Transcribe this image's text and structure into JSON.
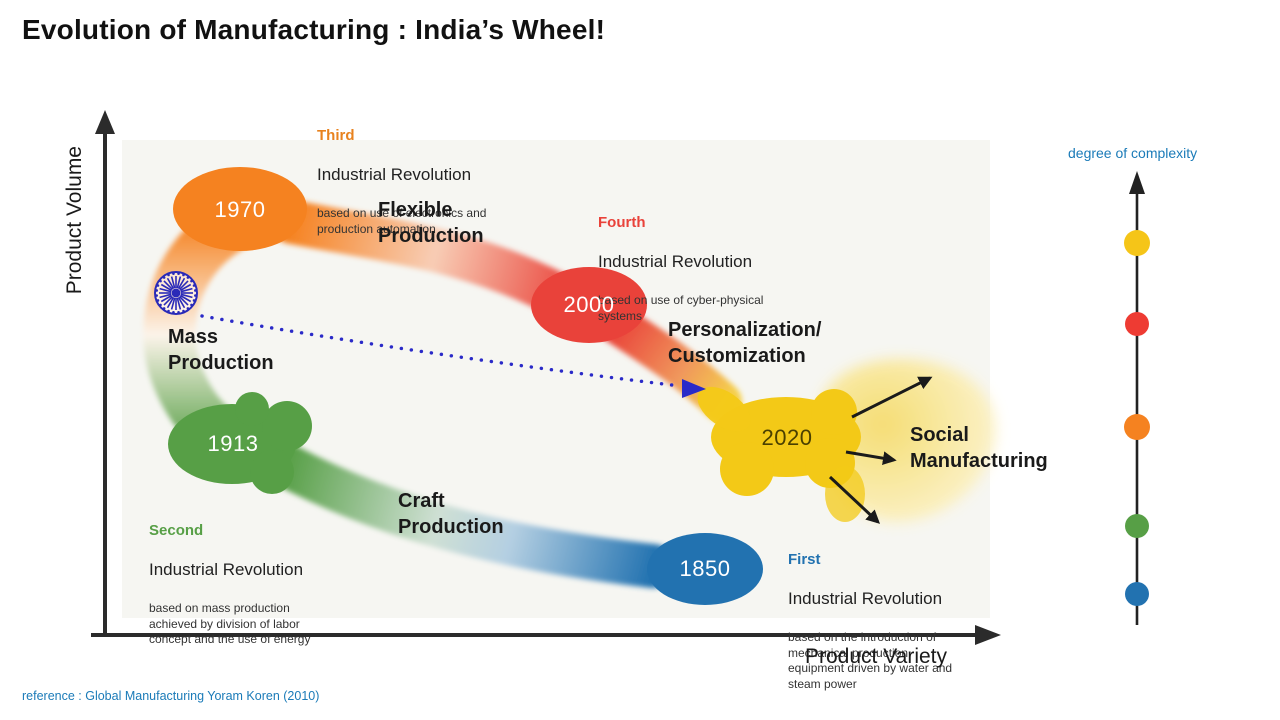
{
  "title": "Evolution of Manufacturing : India’s Wheel!",
  "axes": {
    "y_label": "Product Volume",
    "x_label": "Product Variety"
  },
  "reference": "reference : Global Manufacturing Yoram Koren (2010)",
  "complexity_scale": {
    "label": "degree of complexity",
    "label_color": "#1b7bb8",
    "dot_colors_top_to_bottom": [
      "#f5c518",
      "#ee3b33",
      "#f58220",
      "#579f46",
      "#2272b0"
    ]
  },
  "milestones": [
    {
      "year": "1970",
      "color": "#f58220"
    },
    {
      "year": "2000",
      "color": "#e9423a"
    },
    {
      "year": "1913",
      "color": "#579f46"
    },
    {
      "year": "1850",
      "color": "#2272b0"
    },
    {
      "year": "2020",
      "color": "#f3c917"
    }
  ],
  "revolutions": {
    "third": {
      "ordinal": "Third",
      "title": "Industrial Revolution",
      "desc": "based on use of electronics and\nproduction automation",
      "color": "#e8821e"
    },
    "fourth": {
      "ordinal": "Fourth",
      "title": "Industrial Revolution",
      "desc": "based on use of cyber-physical\nsystems",
      "color": "#e9423a"
    },
    "second": {
      "ordinal": "Second",
      "title": "Industrial Revolution",
      "desc": "based on mass production\nachieved by division of labor\nconcept and the use of energy",
      "color": "#579f46"
    },
    "first": {
      "ordinal": "First",
      "title": "Industrial Revolution",
      "desc": "based on the introduction of\nmechanical production\nequipment driven by water and\nsteam power",
      "color": "#2272b0"
    }
  },
  "production_modes": {
    "mass": "Mass\nProduction",
    "flexible": "Flexible\nProduction",
    "craft": "Craft\nProduction",
    "personalization": "Personalization/\nCustomization",
    "social": "Social\nManufacturing"
  },
  "icons": {
    "ashoka_chakra_color": "#2a2ab8",
    "dotted_arrow_color": "#2a2ac8"
  }
}
